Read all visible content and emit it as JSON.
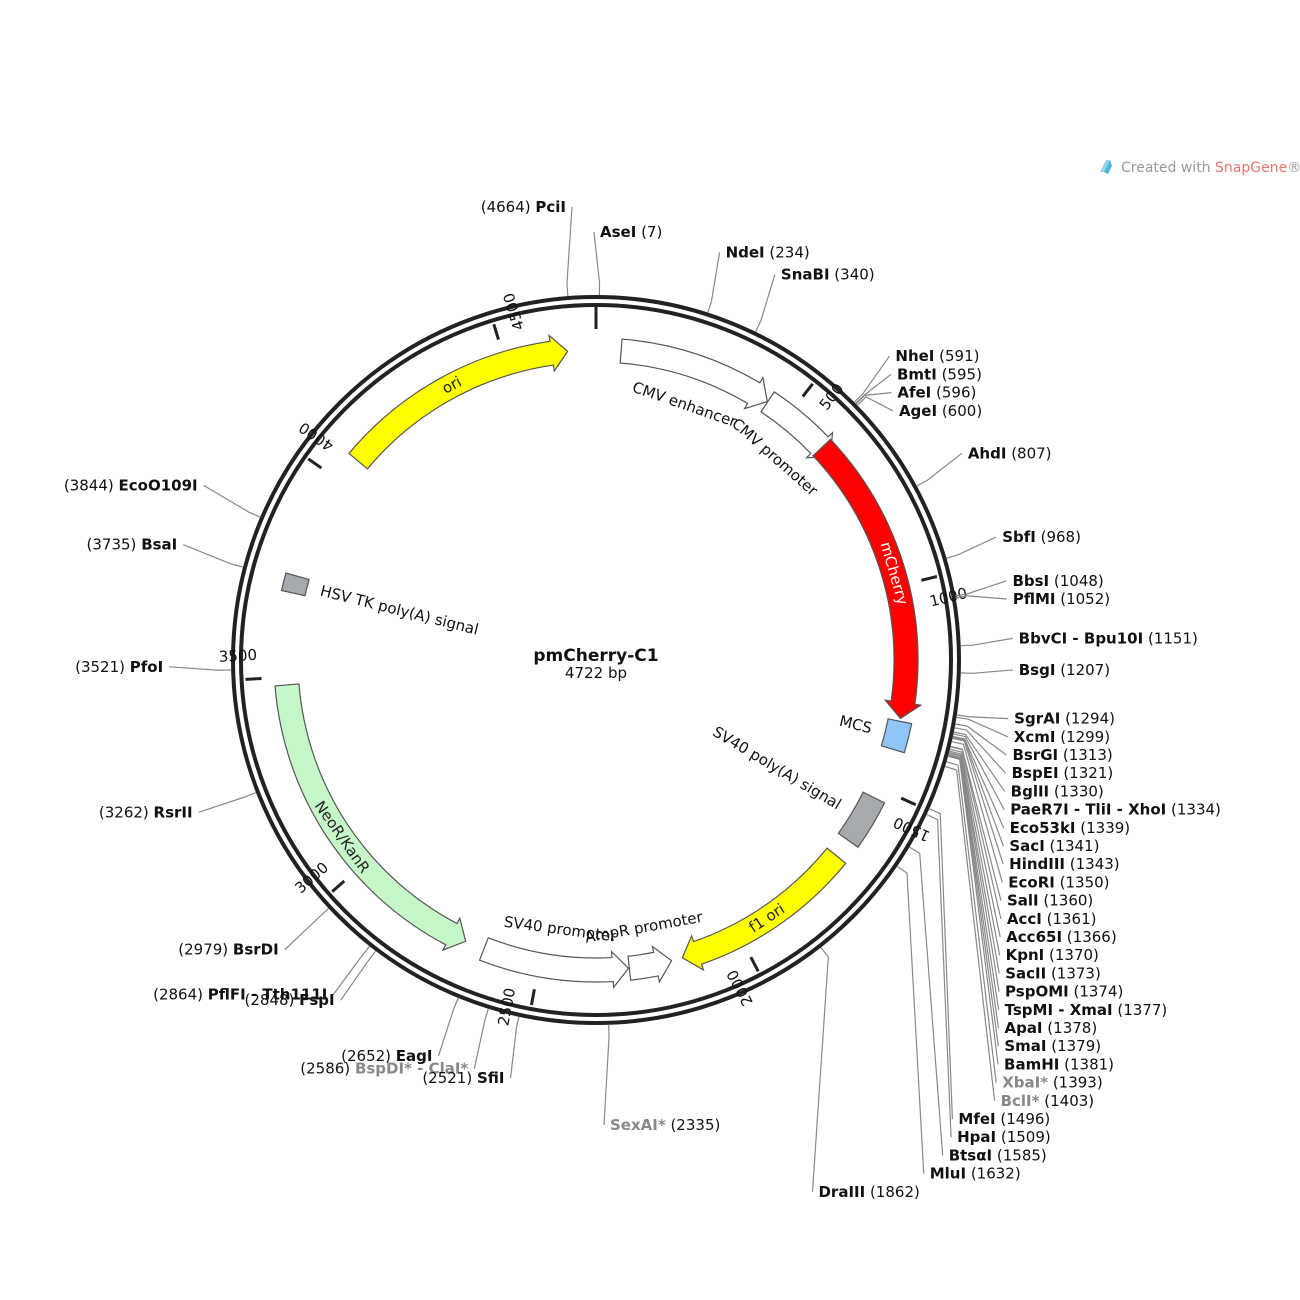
{
  "plasmid": {
    "name": "pmCherry-C1",
    "length": 4722,
    "length_label": "4722 bp"
  },
  "watermark": {
    "prefix": "Created with ",
    "brand": "SnapGene",
    "suffix": "®"
  },
  "ticks": [
    500,
    1000,
    1500,
    2000,
    2500,
    3000,
    3500,
    4000,
    4500
  ],
  "features": [
    {
      "name": "CMV enhancer",
      "start": 61,
      "end": 440,
      "direction": 1,
      "color": "#ffffff",
      "label_mode": "outer"
    },
    {
      "name": "CMV promoter",
      "start": 441,
      "end": 644,
      "direction": 1,
      "color": "#ffffff",
      "label_mode": "outer"
    },
    {
      "name": "mCherry",
      "start": 613,
      "end": 1323,
      "direction": 1,
      "color": "#ff0000",
      "label_mode": "inside",
      "label_color": "#ffffff"
    },
    {
      "name": "MCS",
      "start": 1330,
      "end": 1400,
      "direction": 0,
      "color": "#8fc5f7",
      "label_mode": "inner"
    },
    {
      "name": "SV40 poly(A) signal",
      "start": 1526,
      "end": 1647,
      "direction": 0,
      "color": "#a6a9ad",
      "label_mode": "inner"
    },
    {
      "name": "f1 ori",
      "start": 1694,
      "end": 2149,
      "direction": 1,
      "color": "#ffff00",
      "label_mode": "inside",
      "label_color": "#222222"
    },
    {
      "name": "AmpR promoter",
      "start": 2176,
      "end": 2280,
      "direction": -1,
      "color": "#ffffff",
      "label_mode": "inner"
    },
    {
      "name": "SV40 promoter",
      "start": 2282,
      "end": 2639,
      "direction": -1,
      "color": "#ffffff",
      "label_mode": "inner"
    },
    {
      "name": "NeoR/KanR",
      "start": 2687,
      "end": 3481,
      "direction": -1,
      "color": "#c6f7c8",
      "label_mode": "inside",
      "label_color": "#222222"
    },
    {
      "name": "HSV TK poly(A) signal",
      "start": 3717,
      "end": 3735,
      "direction": 0,
      "color": "#a6a9ad",
      "label_mode": "inner"
    },
    {
      "name": "ori",
      "start": 4065,
      "end": 4653,
      "direction": 1,
      "color": "#ffff00",
      "label_mode": "inside",
      "label_color": "#222222"
    }
  ],
  "sites": [
    {
      "name": "PciI",
      "pos": 4664,
      "dim": false,
      "side": "left"
    },
    {
      "name": "AseI",
      "pos": 7,
      "dim": false,
      "side": "right"
    },
    {
      "name": "NdeI",
      "pos": 234,
      "dim": false,
      "side": "right"
    },
    {
      "name": "SnaBI",
      "pos": 340,
      "dim": false,
      "side": "right"
    },
    {
      "name": "NheI",
      "pos": 591,
      "dim": false,
      "side": "right"
    },
    {
      "name": "BmtI",
      "pos": 595,
      "dim": false,
      "side": "right"
    },
    {
      "name": "AfeI",
      "pos": 596,
      "dim": false,
      "side": "right"
    },
    {
      "name": "AgeI",
      "pos": 600,
      "dim": false,
      "side": "right"
    },
    {
      "name": "AhdI",
      "pos": 807,
      "dim": false,
      "side": "right"
    },
    {
      "name": "SbfI",
      "pos": 968,
      "dim": false,
      "side": "right"
    },
    {
      "name": "BbsI",
      "pos": 1048,
      "dim": false,
      "side": "right"
    },
    {
      "name": "PflMI",
      "pos": 1052,
      "dim": false,
      "side": "right"
    },
    {
      "name": "BbvCI - Bpu10I",
      "pos": 1151,
      "dim": false,
      "side": "right"
    },
    {
      "name": "BsgI",
      "pos": 1207,
      "dim": false,
      "side": "right"
    },
    {
      "name": "SgrAI",
      "pos": 1294,
      "dim": false,
      "side": "right"
    },
    {
      "name": "XcmI",
      "pos": 1299,
      "dim": false,
      "side": "right"
    },
    {
      "name": "BsrGI",
      "pos": 1313,
      "dim": false,
      "side": "right"
    },
    {
      "name": "BspEI",
      "pos": 1321,
      "dim": false,
      "side": "right"
    },
    {
      "name": "BglII",
      "pos": 1330,
      "dim": false,
      "side": "right"
    },
    {
      "name": "PaeR7I - TliI - XhoI",
      "pos": 1334,
      "dim": false,
      "side": "right"
    },
    {
      "name": "Eco53kI",
      "pos": 1339,
      "dim": false,
      "side": "right"
    },
    {
      "name": "SacI",
      "pos": 1341,
      "dim": false,
      "side": "right"
    },
    {
      "name": "HindIII",
      "pos": 1343,
      "dim": false,
      "side": "right"
    },
    {
      "name": "EcoRI",
      "pos": 1350,
      "dim": false,
      "side": "right"
    },
    {
      "name": "SalI",
      "pos": 1360,
      "dim": false,
      "side": "right"
    },
    {
      "name": "AccI",
      "pos": 1361,
      "dim": false,
      "side": "right"
    },
    {
      "name": "Acc65I",
      "pos": 1366,
      "dim": false,
      "side": "right"
    },
    {
      "name": "KpnI",
      "pos": 1370,
      "dim": false,
      "side": "right"
    },
    {
      "name": "SacII",
      "pos": 1373,
      "dim": false,
      "side": "right"
    },
    {
      "name": "PspOMI",
      "pos": 1374,
      "dim": false,
      "side": "right"
    },
    {
      "name": "TspMI - XmaI",
      "pos": 1377,
      "dim": false,
      "side": "right"
    },
    {
      "name": "ApaI",
      "pos": 1378,
      "dim": false,
      "side": "right"
    },
    {
      "name": "SmaI",
      "pos": 1379,
      "dim": false,
      "side": "right"
    },
    {
      "name": "BamHI",
      "pos": 1381,
      "dim": false,
      "side": "right"
    },
    {
      "name": "XbaI*",
      "pos": 1393,
      "dim": true,
      "side": "right"
    },
    {
      "name": "BclI*",
      "pos": 1403,
      "dim": true,
      "side": "right"
    },
    {
      "name": "MfeI",
      "pos": 1496,
      "dim": false,
      "side": "right"
    },
    {
      "name": "HpaI",
      "pos": 1509,
      "dim": false,
      "side": "right"
    },
    {
      "name": "BtsαI",
      "pos": 1585,
      "dim": false,
      "side": "right"
    },
    {
      "name": "MluI",
      "pos": 1632,
      "dim": false,
      "side": "right"
    },
    {
      "name": "DraIII",
      "pos": 1862,
      "dim": false,
      "side": "right"
    },
    {
      "name": "SexAI*",
      "pos": 2335,
      "dim": true,
      "side": "right"
    },
    {
      "name": "SfiI",
      "pos": 2521,
      "dim": false,
      "side": "left"
    },
    {
      "name": "BspDI* - ClaI*",
      "pos": 2586,
      "dim": true,
      "side": "left"
    },
    {
      "name": "EagI",
      "pos": 2652,
      "dim": false,
      "side": "left"
    },
    {
      "name": "FspI",
      "pos": 2848,
      "dim": false,
      "side": "left"
    },
    {
      "name": "PflFI - Tth111I",
      "pos": 2864,
      "dim": false,
      "side": "left"
    },
    {
      "name": "BsrDI",
      "pos": 2979,
      "dim": false,
      "side": "left"
    },
    {
      "name": "RsrII",
      "pos": 3262,
      "dim": false,
      "side": "left"
    },
    {
      "name": "PfoI",
      "pos": 3521,
      "dim": false,
      "side": "left"
    },
    {
      "name": "BsaI",
      "pos": 3735,
      "dim": false,
      "side": "left"
    },
    {
      "name": "EcoO109I",
      "pos": 3844,
      "dim": false,
      "side": "left"
    }
  ]
}
